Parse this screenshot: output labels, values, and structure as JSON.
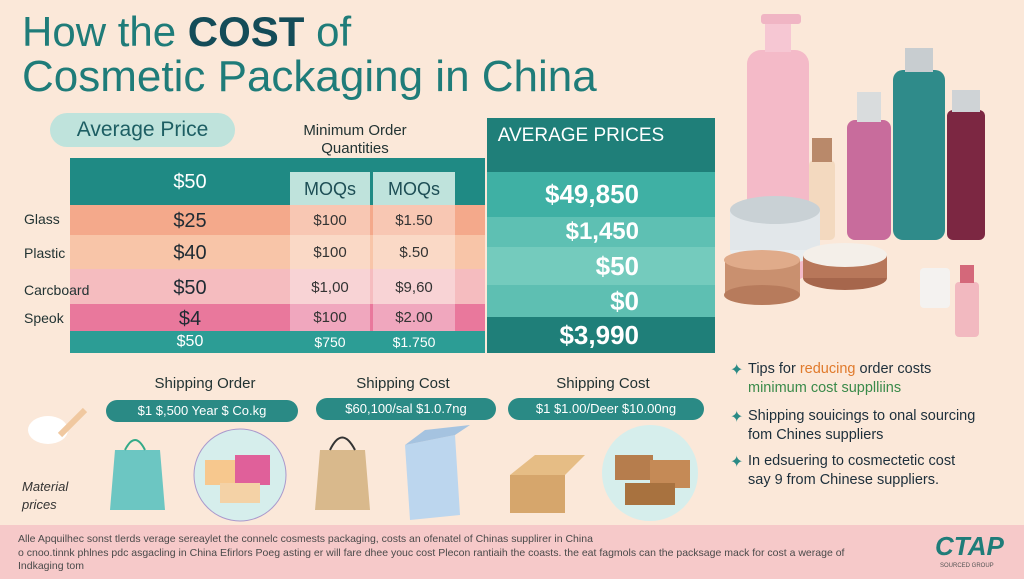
{
  "title": {
    "line1_pre": "How the",
    "line1_highlight": "COST",
    "line1_post": "of",
    "line2": "Cosmetic Packaging in China"
  },
  "average_price_label": "Average Price",
  "moq_heading": "Minimum Order Quantities",
  "average_prices_heading": "AVERAGE PRICES",
  "table": {
    "moq_headers": [
      "MOQs",
      "MOQs"
    ],
    "rows": [
      {
        "price": "$50"
      },
      {
        "label": "Glass",
        "price": "$25",
        "moq": [
          "$100",
          "$1.50"
        ]
      },
      {
        "label": "Plastic",
        "price": "$40",
        "moq": [
          "$100",
          "$.50"
        ]
      },
      {
        "label": "Carcboard",
        "price": "$50",
        "moq": [
          "$1,00",
          "$9,60"
        ]
      },
      {
        "label": "Speok",
        "price": "$4",
        "moq": [
          "$100",
          "$2.00"
        ]
      },
      {
        "price": "$50",
        "moq": [
          "$750",
          "$1.750"
        ]
      }
    ],
    "average_prices": [
      "$49,850",
      "$1,450",
      "$50",
      "$0",
      "$3,990"
    ]
  },
  "shipping": [
    {
      "heading": "Shipping Order",
      "value": "$1 $,500 Year $ Co.kg"
    },
    {
      "heading": "Shipping Cost",
      "value": "$60,100/sal $1.0.7ng"
    },
    {
      "heading": "Shipping Cost",
      "value": "$1 $1.00/Deer $10.00ng"
    }
  ],
  "material_label": "Material prices",
  "tips": [
    {
      "line1_pre": "Tips for",
      "line1_highlight": "reducing",
      "line1_post": "order costs",
      "line2": "minimum cost supplliins"
    },
    {
      "line1": "Shipping souicings to onal sourcing",
      "line2": "fom Chines suppliers"
    },
    {
      "line1": "In edsuering to cosmectetic cost",
      "line2": "say 9 from Chinese suppliers."
    }
  ],
  "footer": {
    "line1": "Alle Apquilhec sonst tlerds verage sereaylet the connelc cosmests packaging, costs an ofenatel of Chinas supplirer in China",
    "line2": "o cnoo.tinnk phlnes pdc asgacling in China Efirlors Poeg asting er will fare dhee youc cost Plecon rantiaih the coasts. the eat fagmols can the packsage mack for cost a werage of Indkaging tom"
  },
  "logo": {
    "name": "CTAP",
    "tagline": "SOURCED GROUP"
  }
}
